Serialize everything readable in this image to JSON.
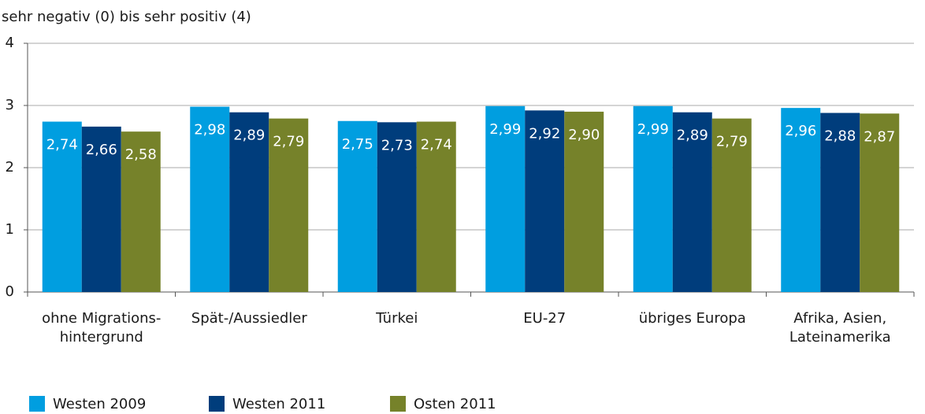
{
  "chart_data": {
    "type": "bar",
    "y_axis_label": "sehr negativ (0) bis sehr positiv (4)",
    "categories": [
      "ohne Migrations-\nhintergrund",
      "Spät-/Aussiedler",
      "Türkei",
      "EU-27",
      "übriges Europa",
      "Afrika, Asien,\nLateinamerika"
    ],
    "series": [
      {
        "name": "Westen 2009",
        "color": "#009ee0",
        "values": [
          2.74,
          2.98,
          2.75,
          2.99,
          2.99,
          2.96
        ],
        "value_labels": [
          "2,74",
          "2,98",
          "2,75",
          "2,99",
          "2,99",
          "2,96"
        ]
      },
      {
        "name": "Westen 2011",
        "color": "#003d7c",
        "values": [
          2.66,
          2.89,
          2.73,
          2.92,
          2.89,
          2.88
        ],
        "value_labels": [
          "2,66",
          "2,89",
          "2,73",
          "2,92",
          "2,89",
          "2,88"
        ]
      },
      {
        "name": "Osten 2011",
        "color": "#76822a",
        "values": [
          2.58,
          2.79,
          2.74,
          2.9,
          2.79,
          2.87
        ],
        "value_labels": [
          "2,58",
          "2,79",
          "2,74",
          "2,90",
          "2,79",
          "2,87"
        ]
      }
    ],
    "ylim": [
      0,
      4
    ],
    "yticks": [
      0,
      1,
      2,
      3,
      4
    ],
    "grid": true,
    "legend": "bottom"
  }
}
